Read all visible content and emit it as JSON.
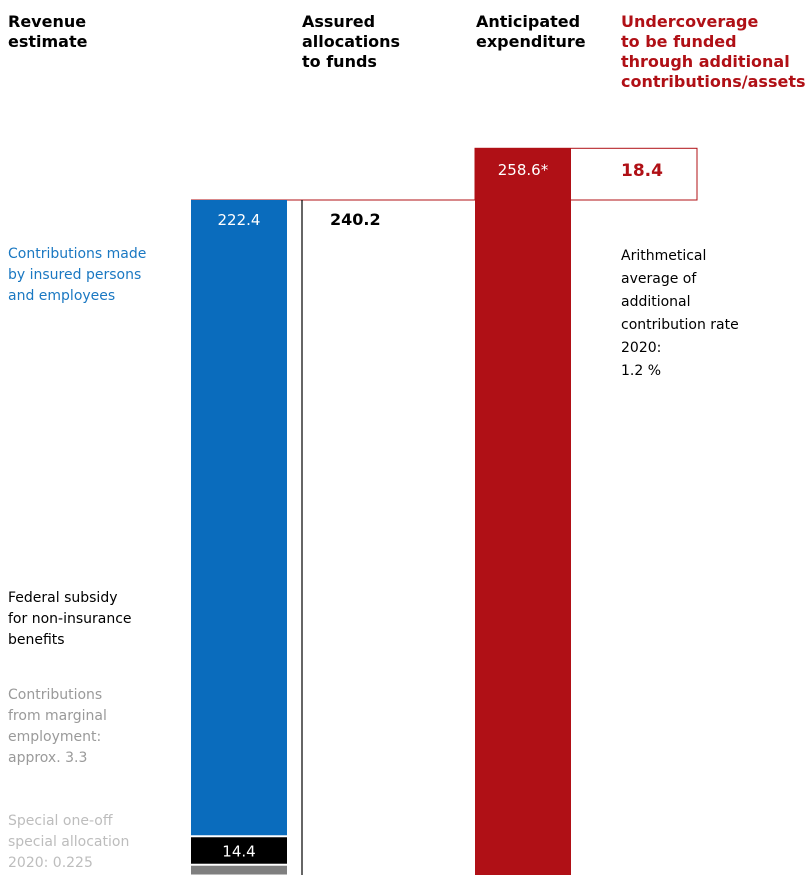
{
  "headers": {
    "revenue_estimate": "Revenue\nestimate",
    "assured_allocations": "Assured\nallocations\nto funds",
    "anticipated_expenditure": "Anticipated\nexpenditure",
    "undercoverage": "Undercoverage\nto be funded\nthrough additional\ncontributions/assets"
  },
  "labels": {
    "contributions_insured": "Contributions made\nby insured persons\nand employees",
    "federal_subsidy": "Federal subsidy\nfor non-insurance\nbenefits",
    "marginal_employment": "Contributions\nfrom marginal\nemployment:\napprox. 3.3",
    "special_allocation": "Special one-off\nspecial allocation\n2020: 0.225"
  },
  "note": "Arithmetical\naverage of\nadditional\ncontribution rate\n2020:\n1.2 %",
  "chart_data": {
    "type": "bar",
    "unit": "",
    "bars": [
      {
        "name": "revenue",
        "segments": [
          {
            "value": 222.4,
            "label": "222.4",
            "color": "#0a6cbd"
          },
          {
            "value": 14.4,
            "label": "14.4",
            "color": "#000000"
          },
          {
            "value": 3.3,
            "label": "",
            "color": "#7f7f7f"
          },
          {
            "value": 0.225,
            "label": "",
            "color": "#bdbdbd"
          }
        ]
      },
      {
        "name": "assured_allocations",
        "value": 240.2,
        "label": "240.2"
      },
      {
        "name": "anticipated_expenditure",
        "value": 258.6,
        "label": "258.6*",
        "color": "#b01016"
      },
      {
        "name": "undercoverage",
        "value": 18.4,
        "label": "18.4",
        "color": "#b01016"
      }
    ],
    "colors": {
      "blue": "#0a6cbd",
      "red": "#b01016",
      "black": "#000000",
      "gray": "#7f7f7f",
      "lightgray": "#bdbdbd"
    }
  }
}
